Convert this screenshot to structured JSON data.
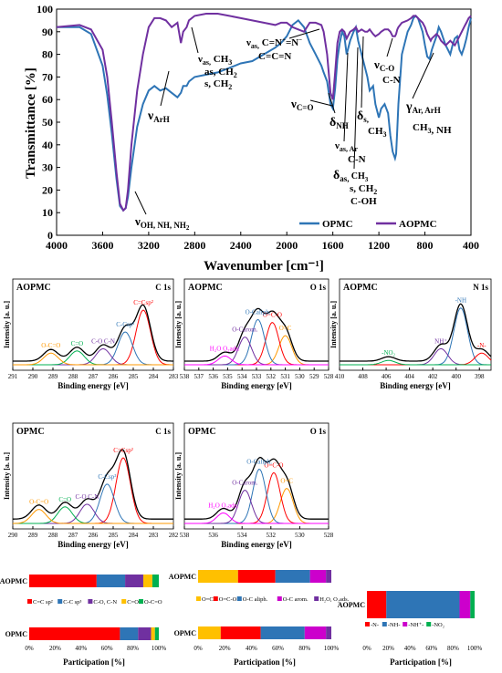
{
  "chart_data": [
    {
      "type": "line",
      "id": "ftir",
      "xlabel": "Wavenumber [cm⁻¹]",
      "ylabel": "Transmittance [%]",
      "xlim": [
        4000,
        400
      ],
      "ylim": [
        0,
        100
      ],
      "xticks": [
        4000,
        3600,
        3200,
        2800,
        2400,
        2000,
        1600,
        1200,
        800,
        400
      ],
      "yticks": [
        0,
        10,
        20,
        30,
        40,
        50,
        60,
        70,
        80,
        90,
        100
      ],
      "legend_position": "bottom-right",
      "series": [
        {
          "name": "OPMC",
          "color": "#2e75b6",
          "x": [
            4000,
            3800,
            3700,
            3600,
            3560,
            3520,
            3480,
            3450,
            3420,
            3400,
            3380,
            3350,
            3300,
            3250,
            3200,
            3150,
            3100,
            3050,
            3000,
            2950,
            2920,
            2900,
            2870,
            2850,
            2800,
            2700,
            2600,
            2500,
            2400,
            2300,
            2200,
            2100,
            2050,
            2000,
            1950,
            1900,
            1850,
            1800,
            1750,
            1700,
            1680,
            1650,
            1620,
            1600,
            1580,
            1560,
            1540,
            1520,
            1500,
            1480,
            1450,
            1420,
            1400,
            1380,
            1350,
            1320,
            1300,
            1280,
            1250,
            1230,
            1200,
            1180,
            1150,
            1120,
            1100,
            1080,
            1060,
            1050,
            1040,
            1030,
            1000,
            950,
            920,
            900,
            880,
            860,
            840,
            820,
            800,
            780,
            760,
            750,
            740,
            720,
            700,
            680,
            660,
            640,
            620,
            600,
            580,
            560,
            540,
            520,
            500,
            480,
            460,
            440,
            420,
            400
          ],
          "y": [
            92,
            92,
            89,
            75,
            62,
            45,
            25,
            13,
            11,
            12,
            17,
            30,
            48,
            58,
            64,
            66,
            64,
            65,
            63,
            61,
            63,
            66,
            66,
            68,
            70,
            71,
            72,
            74,
            76,
            77,
            80,
            83,
            85,
            88,
            93,
            95,
            92,
            85,
            80,
            75,
            72,
            68,
            58,
            56,
            65,
            78,
            85,
            90,
            88,
            80,
            86,
            90,
            92,
            86,
            80,
            74,
            70,
            64,
            66,
            58,
            52,
            56,
            58,
            54,
            44,
            37,
            34,
            36,
            47,
            58,
            80,
            90,
            93,
            96,
            97,
            96,
            93,
            90,
            84,
            79,
            78,
            80,
            82,
            85,
            88,
            92,
            90,
            87,
            84,
            82,
            80,
            84,
            87,
            88,
            82,
            80,
            83,
            87,
            92,
            96
          ]
        },
        {
          "name": "AOPMC",
          "color": "#7030a0",
          "x": [
            4000,
            3800,
            3700,
            3600,
            3560,
            3520,
            3480,
            3450,
            3420,
            3400,
            3380,
            3350,
            3300,
            3250,
            3200,
            3150,
            3100,
            3050,
            3000,
            2950,
            2920,
            2900,
            2870,
            2850,
            2800,
            2700,
            2600,
            2500,
            2400,
            2300,
            2200,
            2100,
            2050,
            2000,
            1950,
            1900,
            1850,
            1800,
            1750,
            1700,
            1680,
            1650,
            1620,
            1600,
            1580,
            1560,
            1540,
            1520,
            1500,
            1480,
            1450,
            1420,
            1400,
            1380,
            1350,
            1320,
            1300,
            1280,
            1250,
            1230,
            1200,
            1180,
            1150,
            1120,
            1100,
            1080,
            1060,
            1050,
            1040,
            1030,
            1000,
            950,
            920,
            900,
            880,
            860,
            840,
            820,
            800,
            780,
            760,
            750,
            740,
            720,
            700,
            680,
            660,
            640,
            620,
            600,
            580,
            560,
            540,
            520,
            500,
            480,
            460,
            440,
            420,
            400
          ],
          "y": [
            92,
            93,
            91,
            82,
            70,
            50,
            28,
            14,
            11,
            12,
            20,
            40,
            64,
            80,
            92,
            96,
            96,
            95,
            92,
            94,
            85,
            90,
            92,
            95,
            97,
            98,
            98,
            97,
            96,
            95,
            94,
            93,
            94,
            94,
            92,
            91,
            90,
            94,
            94,
            93,
            90,
            80,
            63,
            60,
            72,
            85,
            90,
            91,
            90,
            87,
            90,
            91,
            92,
            90,
            91,
            90,
            90,
            91,
            89,
            88,
            89,
            90,
            91,
            91,
            90,
            88,
            88,
            89,
            91,
            92,
            94,
            95,
            96,
            97,
            97,
            96,
            95,
            94,
            92,
            89,
            87,
            86,
            87,
            88,
            89,
            88,
            86,
            85,
            84,
            85,
            86,
            85,
            84,
            86,
            88,
            90,
            92,
            94,
            96,
            97
          ]
        }
      ],
      "annotations": [
        "νₐₛ CH₃",
        "as, CH₂",
        "s, CH₂",
        "νArH",
        "νOH, NH, NH₂",
        "νₐₛ C=N⁺=N⁻",
        "C=C=N",
        "νC=O",
        "δNH",
        "νₐₛ,Ar C-N",
        "δₐₛ CH₃",
        "s, CH₂",
        "C-OH",
        "δs, CH₃",
        "νC-O C-N",
        "γAr, ArH CH₃, NH"
      ]
    },
    {
      "type": "line",
      "id": "xps-aopmc-c1s",
      "title": "AOPMC",
      "tag": "C 1s",
      "xlabel": "Binding energy [eV]",
      "ylabel": "Intensity [a. u.]",
      "xlim": [
        291,
        283
      ],
      "xticks": [
        291,
        290,
        289,
        288,
        287,
        286,
        285,
        284,
        283
      ],
      "peaks": [
        {
          "label": "C=Csp²",
          "center": 284.5,
          "color": "#ff0000"
        },
        {
          "label": "C-Csp³",
          "center": 285.4,
          "color": "#2e75b6"
        },
        {
          "label": "C-O C-N",
          "center": 286.5,
          "color": "#7030a0"
        },
        {
          "label": "C=O",
          "center": 287.8,
          "color": "#00b050"
        },
        {
          "label": "O-C=O",
          "center": 289.1,
          "color": "#ff9900"
        }
      ]
    },
    {
      "type": "line",
      "id": "xps-aopmc-o1s",
      "title": "AOPMC",
      "tag": "O 1s",
      "xlabel": "Binding energy [eV]",
      "ylabel": "Intensity [a. u.]",
      "xlim": [
        538,
        528
      ],
      "xticks": [
        538,
        537,
        536,
        535,
        534,
        533,
        532,
        531,
        530,
        529,
        528
      ],
      "peaks": [
        {
          "label": "O=C",
          "center": 531.0,
          "color": "#ff9900"
        },
        {
          "label": "O=C-O",
          "center": 531.9,
          "color": "#ff0000"
        },
        {
          "label": "O-Caliph.",
          "center": 532.9,
          "color": "#2e75b6"
        },
        {
          "label": "O-Carom.",
          "center": 533.8,
          "color": "#7030a0"
        },
        {
          "label": "H₂O O₂ads.",
          "center": 535.2,
          "color": "#ff00ff"
        }
      ]
    },
    {
      "type": "line",
      "id": "xps-aopmc-n1s",
      "title": "AOPMC",
      "tag": "N 1s",
      "xlabel": "Binding energy [eV]",
      "ylabel": "Intensity [a. u.]",
      "xlim": [
        410,
        397
      ],
      "xticks": [
        410,
        408,
        406,
        404,
        402,
        400,
        398
      ],
      "peaks": [
        {
          "label": "-NH",
          "center": 399.6,
          "color": "#2e75b6"
        },
        {
          "label": "NH⁺",
          "center": 401.3,
          "color": "#7030a0"
        },
        {
          "label": "-N-",
          "center": 397.8,
          "color": "#ff0000"
        },
        {
          "label": "-NO₂",
          "center": 405.8,
          "color": "#00b050"
        }
      ]
    },
    {
      "type": "line",
      "id": "xps-opmc-c1s",
      "title": "OPMC",
      "tag": "C 1s",
      "xlabel": "Binding energy [eV]",
      "ylabel": "Intensity [a. u.]",
      "xlim": [
        290,
        282
      ],
      "xticks": [
        290,
        289,
        288,
        287,
        286,
        285,
        284,
        283,
        282
      ],
      "peaks": [
        {
          "label": "C=Csp²",
          "center": 284.5,
          "color": "#ff0000"
        },
        {
          "label": "C-Csp³",
          "center": 285.3,
          "color": "#2e75b6"
        },
        {
          "label": "C-O C-N",
          "center": 286.3,
          "color": "#7030a0"
        },
        {
          "label": "C=O",
          "center": 287.4,
          "color": "#00b050"
        },
        {
          "label": "O-C=O",
          "center": 288.7,
          "color": "#ff9900"
        }
      ]
    },
    {
      "type": "line",
      "id": "xps-opmc-o1s",
      "title": "OPMC",
      "tag": "O 1s",
      "xlabel": "Binding energy [eV]",
      "ylabel": "Intensity [a. u.]",
      "xlim": [
        538,
        528
      ],
      "xticks": [
        538,
        536,
        534,
        532,
        530,
        528
      ],
      "peaks": [
        {
          "label": "O=C",
          "center": 530.9,
          "color": "#ff9900"
        },
        {
          "label": "O=C-O",
          "center": 531.8,
          "color": "#ff0000"
        },
        {
          "label": "O-Caliph.",
          "center": 532.8,
          "color": "#2e75b6"
        },
        {
          "label": "O-Carom.",
          "center": 533.8,
          "color": "#7030a0"
        },
        {
          "label": "H₂O O₂ads.",
          "center": 535.3,
          "color": "#ff00ff"
        }
      ]
    },
    {
      "type": "bar",
      "id": "bars-c1s",
      "stacked": true,
      "orientation": "horizontal",
      "xlabel": "Participation [%]",
      "xlim": [
        0,
        100
      ],
      "xticks": [
        "0%",
        "20%",
        "40%",
        "60%",
        "80%",
        "100%"
      ],
      "categories": [
        "AOPMC",
        "OPMC"
      ],
      "legend": [
        "C=C sp²",
        "C-C sp³",
        "C-O, C-N",
        "C=O",
        "O-C=O"
      ],
      "colors": [
        "#ff0000",
        "#2e75b6",
        "#7030a0",
        "#ffc000",
        "#00b050"
      ],
      "series": [
        {
          "name": "C=C sp²",
          "values": [
            52,
            70
          ]
        },
        {
          "name": "C-C sp³",
          "values": [
            22,
            14
          ]
        },
        {
          "name": "C-O, C-N",
          "values": [
            14,
            10
          ]
        },
        {
          "name": "C=O",
          "values": [
            7,
            3
          ]
        },
        {
          "name": "O-C=O",
          "values": [
            5,
            3
          ]
        }
      ]
    },
    {
      "type": "bar",
      "id": "bars-o1s",
      "stacked": true,
      "orientation": "horizontal",
      "xlabel": "Participation [%]",
      "xlim": [
        0,
        100
      ],
      "xticks": [
        "0%",
        "20%",
        "40%",
        "60%",
        "80%",
        "100%"
      ],
      "categories": [
        "AOPMC",
        "OPMC"
      ],
      "legend": [
        "O=C",
        "O=C-O",
        "O-C aliph.",
        "O-C arom.",
        "H₂O, O₂ads."
      ],
      "colors": [
        "#ffc000",
        "#ff0000",
        "#2e75b6",
        "#cc00cc",
        "#7030a0"
      ],
      "series": [
        {
          "name": "O=C",
          "values": [
            30,
            17
          ]
        },
        {
          "name": "O=C-O",
          "values": [
            28,
            30
          ]
        },
        {
          "name": "O-C aliph.",
          "values": [
            26,
            33
          ]
        },
        {
          "name": "O-C arom.",
          "values": [
            12,
            16
          ]
        },
        {
          "name": "H₂O, O₂ads.",
          "values": [
            4,
            4
          ]
        }
      ]
    },
    {
      "type": "bar",
      "id": "bars-n1s",
      "stacked": true,
      "orientation": "horizontal",
      "xlabel": "Participation [%]",
      "xlim": [
        0,
        100
      ],
      "xticks": [
        "0%",
        "20%",
        "40%",
        "60%",
        "80%",
        "100%"
      ],
      "categories": [
        "AOPMC"
      ],
      "legend": [
        "-N-",
        "-NH-",
        "-NH⁺-",
        "-NO₂"
      ],
      "colors": [
        "#ff0000",
        "#2e75b6",
        "#cc00cc",
        "#00b050"
      ],
      "series": [
        {
          "name": "-N-",
          "values": [
            18
          ]
        },
        {
          "name": "-NH-",
          "values": [
            68
          ]
        },
        {
          "name": "-NH⁺-",
          "values": [
            10
          ]
        },
        {
          "name": "-NO₂",
          "values": [
            4
          ]
        }
      ]
    }
  ],
  "labels": {
    "ftir_ylabel": "Transmittance [%]",
    "ftir_xlabel": "Wavenumber [cm⁻¹]",
    "legend_opmc": "OPMC",
    "legend_aopmc": "AOPMC",
    "xps_ylabel": "Intensity [a. u.]",
    "xps_xlabel": "Binding energy [eV]",
    "participation": "Participation [%]"
  }
}
